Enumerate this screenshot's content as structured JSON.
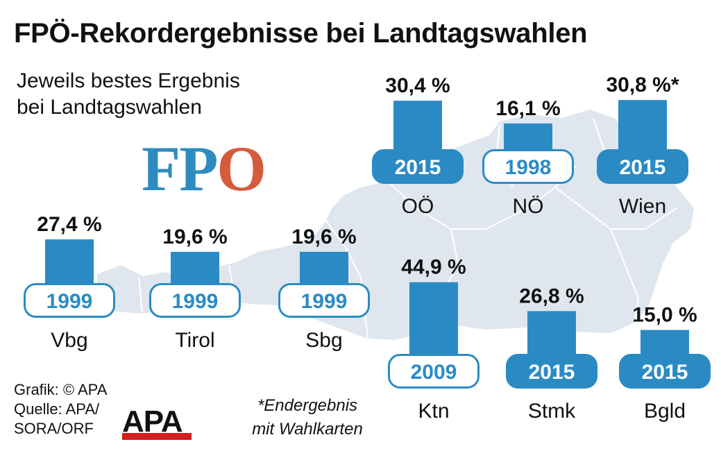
{
  "header": {
    "title": "FPÖ-Rekordergebnisse bei Landtagswahlen",
    "subtitle_line1": "Jeweils bestes Ergebnis",
    "subtitle_line2": "bei Landtagswahlen"
  },
  "logo": {
    "letters": [
      "F",
      "P",
      "O"
    ],
    "colors": [
      "#2e8bc0",
      "#2e8bc0",
      "#d65b3d"
    ]
  },
  "credit": {
    "line1": "Grafik: © APA",
    "line2": "Quelle: APA/",
    "line3": "SORA/ORF",
    "brand": "APA"
  },
  "footnote": {
    "line1": "*Endergebnis",
    "line2": "mit Wahlkarten"
  },
  "colors": {
    "bar": "#2a8bc4",
    "box_border": "#2a8bc4",
    "map": "#dfe6ee",
    "map_lines": "#ffffff"
  },
  "chart_data": {
    "type": "bar",
    "title": "FPÖ-Rekordergebnisse bei Landtagswahlen",
    "subtitle": "Jeweils bestes Ergebnis bei Landtagswahlen",
    "unit": "%",
    "categories": [
      "OÖ",
      "NÖ",
      "Wien",
      "Vbg",
      "Tirol",
      "Sbg",
      "Ktn",
      "Stmk",
      "Bgld"
    ],
    "values": [
      30.4,
      16.1,
      30.8,
      27.4,
      19.6,
      19.6,
      44.9,
      26.8,
      15.0
    ],
    "value_labels": [
      "30,4 %",
      "16,1 %",
      "30,8 %*",
      "27,4 %",
      "19,6 %",
      "19,6 %",
      "44,9 %",
      "26,8 %",
      "15,0 %"
    ],
    "years": [
      "2015",
      "1998",
      "2015",
      "1999",
      "1999",
      "1999",
      "2009",
      "2015",
      "2015"
    ],
    "year_box_filled": [
      true,
      false,
      true,
      false,
      false,
      false,
      false,
      true,
      true
    ]
  }
}
